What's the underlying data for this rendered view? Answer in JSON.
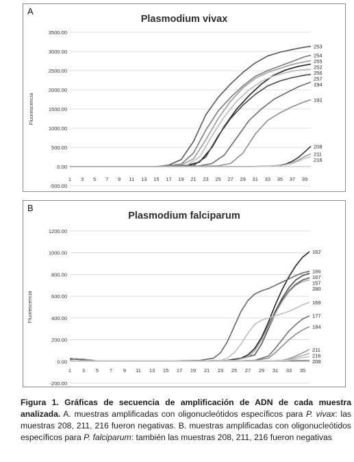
{
  "chart_data": [
    {
      "panel": "A",
      "type": "line",
      "title": "Plasmodium vivax",
      "ylabel": "Fluorescencia",
      "ylim": [
        -500,
        3500
      ],
      "yticks": [
        "3500.00",
        "3000.00",
        "2500.00",
        "2000.00",
        "1500.00",
        "1000.00",
        "500.00",
        "0.00",
        "-500.00"
      ],
      "ytick_values": [
        3500,
        3000,
        2500,
        2000,
        1500,
        1000,
        500,
        0,
        -500
      ],
      "xlim": [
        1,
        40
      ],
      "xticks": [
        "1",
        "3",
        "5",
        "7",
        "9",
        "11",
        "13",
        "15",
        "17",
        "19",
        "21",
        "23",
        "25",
        "27",
        "29",
        "31",
        "33",
        "35",
        "37",
        "39"
      ],
      "grid": "horizontal",
      "series": [
        {
          "name": "253",
          "color": "#555555",
          "x": [
            1,
            5,
            10,
            15,
            17,
            19,
            21,
            23,
            25,
            27,
            29,
            31,
            33,
            35,
            37,
            39,
            40
          ],
          "y": [
            0,
            0,
            0,
            0,
            40,
            180,
            650,
            1350,
            1800,
            2150,
            2450,
            2700,
            2880,
            2980,
            3050,
            3110,
            3130
          ]
        },
        {
          "name": "254",
          "color": "#7a7a7a",
          "x": [
            1,
            5,
            10,
            15,
            19,
            21,
            23,
            25,
            27,
            29,
            31,
            33,
            35,
            37,
            39,
            40
          ],
          "y": [
            0,
            0,
            0,
            0,
            60,
            350,
            950,
            1450,
            1800,
            2100,
            2350,
            2500,
            2620,
            2740,
            2860,
            2900
          ]
        },
        {
          "name": "255",
          "color": "#9a9a9a",
          "x": [
            1,
            5,
            10,
            15,
            19,
            21,
            23,
            25,
            27,
            29,
            31,
            33,
            35,
            37,
            39,
            40
          ],
          "y": [
            0,
            0,
            0,
            0,
            40,
            200,
            700,
            1250,
            1700,
            2050,
            2300,
            2450,
            2560,
            2660,
            2730,
            2760
          ]
        },
        {
          "name": "252",
          "color": "#1f1f1f",
          "x": [
            1,
            5,
            10,
            15,
            20,
            22,
            24,
            26,
            28,
            30,
            32,
            34,
            36,
            38,
            40
          ],
          "y": [
            0,
            0,
            0,
            0,
            30,
            120,
            500,
            1050,
            1500,
            1850,
            2150,
            2380,
            2520,
            2610,
            2670
          ]
        },
        {
          "name": "256",
          "color": "#b8b8b8",
          "x": [
            1,
            5,
            10,
            15,
            20,
            22,
            24,
            26,
            28,
            30,
            32,
            34,
            36,
            38,
            40
          ],
          "y": [
            0,
            0,
            0,
            0,
            40,
            250,
            800,
            1300,
            1700,
            2000,
            2220,
            2360,
            2450,
            2510,
            2540
          ]
        },
        {
          "name": "257",
          "color": "#444444",
          "x": [
            1,
            5,
            10,
            15,
            21,
            23,
            25,
            27,
            29,
            31,
            33,
            35,
            37,
            39,
            40
          ],
          "y": [
            0,
            0,
            0,
            0,
            30,
            250,
            800,
            1250,
            1600,
            1880,
            2100,
            2230,
            2320,
            2380,
            2400
          ]
        },
        {
          "name": "194",
          "color": "#6a6a6a",
          "x": [
            1,
            5,
            10,
            15,
            22,
            24,
            26,
            28,
            30,
            32,
            34,
            36,
            38,
            40
          ],
          "y": [
            0,
            0,
            0,
            0,
            20,
            80,
            300,
            750,
            1200,
            1500,
            1750,
            1920,
            2080,
            2200
          ]
        },
        {
          "name": "192",
          "color": "#8e8e8e",
          "x": [
            1,
            5,
            10,
            15,
            25,
            27,
            29,
            31,
            33,
            35,
            37,
            39,
            40
          ],
          "y": [
            0,
            0,
            0,
            0,
            20,
            80,
            350,
            850,
            1200,
            1400,
            1560,
            1690,
            1740
          ]
        },
        {
          "name": "208",
          "color": "#333333",
          "x": [
            1,
            5,
            10,
            15,
            20,
            25,
            30,
            33,
            35,
            36,
            37,
            38,
            39,
            40
          ],
          "y": [
            0,
            0,
            0,
            0,
            0,
            0,
            0,
            10,
            30,
            70,
            140,
            240,
            380,
            530
          ]
        },
        {
          "name": "211",
          "color": "#9c9c9c",
          "x": [
            1,
            5,
            10,
            15,
            20,
            25,
            30,
            33,
            35,
            36,
            37,
            38,
            39,
            40
          ],
          "y": [
            0,
            0,
            0,
            0,
            0,
            0,
            0,
            10,
            25,
            55,
            100,
            170,
            260,
            330
          ]
        },
        {
          "name": "216",
          "color": "#c4c4c4",
          "x": [
            1,
            5,
            10,
            15,
            20,
            25,
            30,
            33,
            35,
            36,
            37,
            38,
            39,
            40
          ],
          "y": [
            0,
            0,
            0,
            0,
            0,
            0,
            0,
            5,
            20,
            45,
            80,
            140,
            210,
            260
          ]
        }
      ]
    },
    {
      "panel": "B",
      "type": "line",
      "title": "Plasmodium falciparum",
      "ylabel": "Fluorescencia",
      "ylim": [
        -200,
        1200
      ],
      "yticks": [
        "1200.00",
        "1000.00",
        "800.00",
        "600.00",
        "400.00",
        "200.00",
        "0.00",
        "-200.00"
      ],
      "ytick_values": [
        1200,
        1000,
        800,
        600,
        400,
        200,
        0,
        -200
      ],
      "xlim": [
        1,
        36
      ],
      "xticks": [
        "1",
        "3",
        "5",
        "7",
        "9",
        "11",
        "13",
        "15",
        "17",
        "19",
        "21",
        "23",
        "25",
        "27",
        "29",
        "31",
        "33",
        "35"
      ],
      "grid": "horizontal",
      "series": [
        {
          "name": "162",
          "color": "#222222",
          "x": [
            1,
            5,
            10,
            15,
            20,
            24,
            26,
            27,
            28,
            29,
            30,
            31,
            32,
            33,
            34,
            35,
            36
          ],
          "y": [
            5,
            5,
            5,
            5,
            5,
            10,
            30,
            60,
            120,
            220,
            360,
            520,
            660,
            780,
            880,
            960,
            1010
          ]
        },
        {
          "name": "166",
          "color": "#666666",
          "x": [
            1,
            3,
            5,
            10,
            15,
            20,
            22,
            23,
            24,
            25,
            26,
            27,
            28,
            29,
            30,
            31,
            32,
            33,
            34,
            35,
            36
          ],
          "y": [
            25,
            15,
            5,
            5,
            5,
            10,
            30,
            80,
            180,
            320,
            460,
            560,
            620,
            650,
            670,
            700,
            730,
            760,
            790,
            815,
            830
          ]
        },
        {
          "name": "167",
          "color": "#444444",
          "x": [
            1,
            5,
            10,
            15,
            20,
            25,
            27,
            28,
            29,
            30,
            31,
            32,
            33,
            34,
            35,
            36
          ],
          "y": [
            5,
            5,
            5,
            5,
            5,
            10,
            40,
            100,
            200,
            330,
            460,
            580,
            680,
            750,
            790,
            810
          ]
        },
        {
          "name": "157",
          "color": "#555555",
          "x": [
            1,
            5,
            10,
            15,
            20,
            25,
            28,
            29,
            30,
            31,
            32,
            33,
            34,
            35,
            36
          ],
          "y": [
            5,
            5,
            5,
            5,
            5,
            10,
            60,
            160,
            300,
            440,
            560,
            650,
            710,
            750,
            770
          ]
        },
        {
          "name": "280",
          "color": "#aaaaaa",
          "x": [
            1,
            5,
            10,
            15,
            20,
            25,
            27,
            28,
            29,
            30,
            31,
            32,
            33,
            34,
            35,
            36
          ],
          "y": [
            5,
            5,
            5,
            5,
            5,
            10,
            40,
            100,
            200,
            320,
            440,
            550,
            640,
            700,
            735,
            750
          ]
        },
        {
          "name": "169",
          "color": "#bdbdbd",
          "x": [
            1,
            5,
            10,
            15,
            20,
            23,
            24,
            25,
            26,
            27,
            28,
            29,
            30,
            31,
            32,
            33,
            34,
            35,
            36
          ],
          "y": [
            5,
            5,
            5,
            5,
            5,
            10,
            30,
            80,
            160,
            260,
            340,
            380,
            400,
            420,
            440,
            460,
            490,
            520,
            545
          ]
        },
        {
          "name": "177",
          "color": "#707070",
          "x": [
            1,
            5,
            10,
            15,
            20,
            25,
            28,
            30,
            31,
            32,
            33,
            34,
            35,
            36
          ],
          "y": [
            5,
            5,
            5,
            5,
            5,
            5,
            10,
            50,
            120,
            200,
            280,
            340,
            390,
            420
          ]
        },
        {
          "name": "184",
          "color": "#8a8a8a",
          "x": [
            1,
            5,
            10,
            15,
            20,
            25,
            28,
            30,
            31,
            32,
            33,
            34,
            35,
            36
          ],
          "y": [
            5,
            5,
            5,
            5,
            5,
            5,
            10,
            30,
            80,
            140,
            200,
            250,
            290,
            320
          ]
        },
        {
          "name": "211",
          "color": "#9a9a9a",
          "x": [
            1,
            5,
            10,
            15,
            20,
            25,
            30,
            32,
            33,
            34,
            35,
            36
          ],
          "y": [
            5,
            5,
            5,
            5,
            5,
            5,
            5,
            10,
            25,
            50,
            80,
            110
          ]
        },
        {
          "name": "216",
          "color": "#b0b0b0",
          "x": [
            1,
            5,
            10,
            15,
            20,
            25,
            30,
            32,
            33,
            34,
            35,
            36
          ],
          "y": [
            5,
            5,
            5,
            5,
            5,
            5,
            5,
            8,
            18,
            35,
            55,
            75
          ]
        },
        {
          "name": "208",
          "color": "#c8c8c8",
          "x": [
            1,
            5,
            10,
            15,
            20,
            25,
            30,
            32,
            33,
            34,
            35,
            36
          ],
          "y": [
            5,
            5,
            5,
            5,
            5,
            5,
            5,
            6,
            12,
            22,
            35,
            45
          ]
        }
      ],
      "extra_baselines": [
        {
          "color": "#a8a8a8",
          "x": [
            1,
            2,
            3,
            4,
            5,
            7,
            9,
            11,
            13,
            15,
            20,
            25,
            36
          ],
          "y": [
            30,
            20,
            25,
            10,
            5,
            5,
            5,
            5,
            5,
            5,
            5,
            5,
            10
          ]
        },
        {
          "color": "#7e7e7e",
          "x": [
            1,
            2,
            3,
            4,
            5,
            7,
            9,
            11,
            13,
            15,
            20,
            25,
            36
          ],
          "y": [
            15,
            25,
            10,
            15,
            5,
            5,
            5,
            5,
            5,
            5,
            5,
            5,
            8
          ]
        }
      ]
    }
  ],
  "panels": {
    "a_letter": "A",
    "b_letter": "B"
  },
  "caption": {
    "bold": "Figura 1. Gráficas de secuencia de amplificación de ADN de cada muestra analizada.",
    "t1": " A. muestras amplificadas con oligonucleótidos específicos para ",
    "i1": "P. vivax",
    "t2": ": las muestras 208, 211, 216 fueron negativas. B. muestras amplificadas con oligonucleótidos específicos para ",
    "i2": "P. falciparum",
    "t3": ": también las muestras 208, 211, 216 fueron negativas"
  }
}
